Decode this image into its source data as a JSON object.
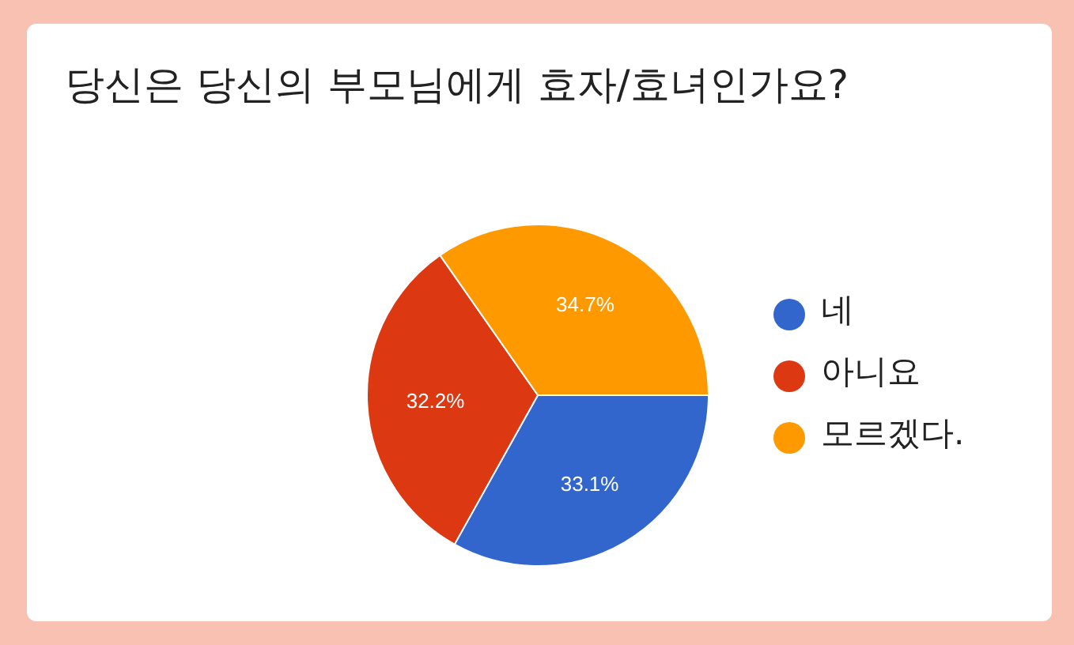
{
  "chart_data": {
    "type": "pie",
    "title": "당신은 당신의 부모님에게 효자/효녀인가요?",
    "categories": [
      "네",
      "아니요",
      "모르겠다."
    ],
    "values": [
      33.1,
      32.2,
      34.7
    ],
    "value_labels": [
      "33.1%",
      "32.2%",
      "34.7%"
    ],
    "colors": [
      "#3366cc",
      "#dc3912",
      "#ff9900"
    ],
    "legend": "right"
  }
}
